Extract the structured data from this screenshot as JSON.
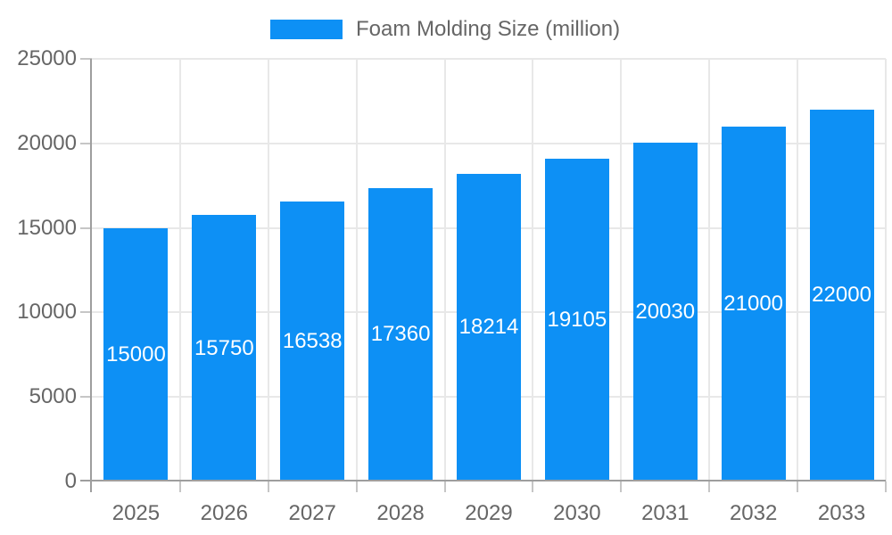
{
  "chart_data": {
    "type": "bar",
    "title": "",
    "legend": "Foam Molding Size (million)",
    "legend_position": "top-center",
    "categories": [
      "2025",
      "2026",
      "2027",
      "2028",
      "2029",
      "2030",
      "2031",
      "2032",
      "2033"
    ],
    "values": [
      15000,
      15750,
      16538,
      17360,
      18214,
      19105,
      20030,
      21000,
      22000
    ],
    "value_labels": [
      "15000",
      "15750",
      "16538",
      "17360",
      "18214",
      "19105",
      "20030",
      "21000",
      "22000"
    ],
    "xlabel": "",
    "ylabel": "",
    "ylim": [
      0,
      25000
    ],
    "yticks": [
      0,
      5000,
      10000,
      15000,
      20000,
      25000
    ],
    "ytick_labels": [
      "0",
      "5000",
      "10000",
      "15000",
      "20000",
      "25000"
    ],
    "grid": true,
    "colors": {
      "bar": "#0d90f5",
      "axis": "#9e9e9e",
      "grid": "#e8e8e8",
      "tick": "#c6c6c6",
      "label_text": "#666666",
      "value_text": "#ffffff",
      "background": "#ffffff"
    }
  }
}
